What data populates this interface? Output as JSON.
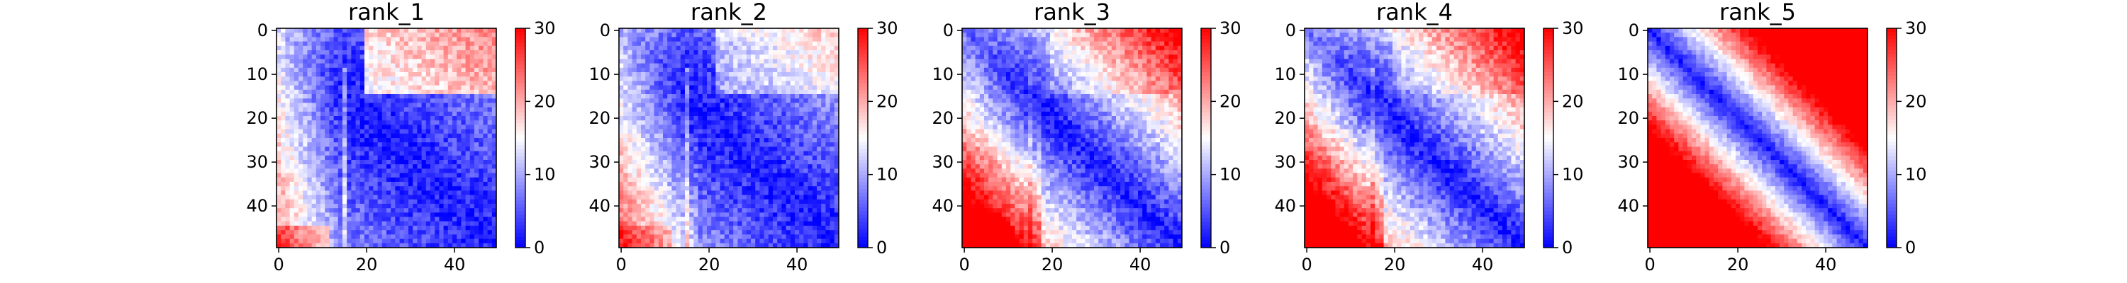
{
  "chart_data": [
    {
      "type": "heatmap",
      "title": "rank_1",
      "rows": 50,
      "cols": 50,
      "xticks": [
        0,
        20,
        40
      ],
      "yticks": [
        0,
        10,
        20,
        30,
        40
      ],
      "colorbar": {
        "min": 0,
        "max": 30,
        "ticks": [
          0,
          10,
          20,
          30
        ],
        "colors": [
          "#0000ff",
          "#ffffff",
          "#ff0000"
        ]
      },
      "pattern": {
        "diag": 1.5,
        "band": 0.18,
        "side_hi": 0,
        "side_lo": 11,
        "block": 12,
        "block_rows": [
          0,
          14
        ],
        "block_cols": [
          20,
          49
        ],
        "corner": 6,
        "noise": 3
      }
    },
    {
      "type": "heatmap",
      "title": "rank_2",
      "rows": 50,
      "cols": 50,
      "xticks": [
        0,
        20,
        40
      ],
      "yticks": [
        0,
        10,
        20,
        30,
        40
      ],
      "colorbar": {
        "min": 0,
        "max": 30,
        "ticks": [
          0,
          10,
          20,
          30
        ],
        "colors": [
          "#0000ff",
          "#ffffff",
          "#ff0000"
        ]
      },
      "pattern": {
        "diag": 1.5,
        "band": 0.22,
        "side_hi": 4,
        "side_lo": 9,
        "block": 6,
        "block_rows": [
          0,
          14
        ],
        "block_cols": [
          22,
          49
        ],
        "corner": 4,
        "noise": 3
      }
    },
    {
      "type": "heatmap",
      "title": "rank_3",
      "rows": 50,
      "cols": 50,
      "xticks": [
        0,
        20,
        40
      ],
      "yticks": [
        0,
        10,
        20,
        30,
        40
      ],
      "colorbar": {
        "min": 0,
        "max": 30,
        "ticks": [
          0,
          10,
          20,
          30
        ],
        "colors": [
          "#0000ff",
          "#ffffff",
          "#ff0000"
        ]
      },
      "pattern": {
        "diag": 1.5,
        "band": 0.55,
        "side_hi": 8,
        "side_lo": 5,
        "block": 3,
        "block_rows": [
          0,
          14
        ],
        "block_cols": [
          20,
          49
        ],
        "corner": 4,
        "noise": 3
      }
    },
    {
      "type": "heatmap",
      "title": "rank_4",
      "rows": 50,
      "cols": 50,
      "xticks": [
        0,
        20,
        40
      ],
      "yticks": [
        0,
        10,
        20,
        30,
        40
      ],
      "colorbar": {
        "min": 0,
        "max": 30,
        "ticks": [
          0,
          10,
          20,
          30
        ],
        "colors": [
          "#0000ff",
          "#ffffff",
          "#ff0000"
        ]
      },
      "pattern": {
        "diag": 1.5,
        "band": 0.58,
        "side_hi": 8,
        "side_lo": 6,
        "block": 2,
        "block_rows": [
          0,
          14
        ],
        "block_cols": [
          20,
          49
        ],
        "corner": 2,
        "noise": 3
      }
    },
    {
      "type": "heatmap",
      "title": "rank_5",
      "rows": 50,
      "cols": 50,
      "xticks": [
        0,
        20,
        40
      ],
      "yticks": [
        0,
        10,
        20,
        30,
        40
      ],
      "colorbar": {
        "min": 0,
        "max": 30,
        "ticks": [
          0,
          10,
          20,
          30
        ],
        "colors": [
          "#0000ff",
          "#ffffff",
          "#ff0000"
        ]
      },
      "pattern": {
        "diag": 1.5,
        "band": 1.3,
        "side_hi": 0,
        "side_lo": 0,
        "block": 0,
        "block_rows": [
          0,
          0
        ],
        "block_cols": [
          0,
          0
        ],
        "corner": 0,
        "noise": 2
      }
    }
  ]
}
